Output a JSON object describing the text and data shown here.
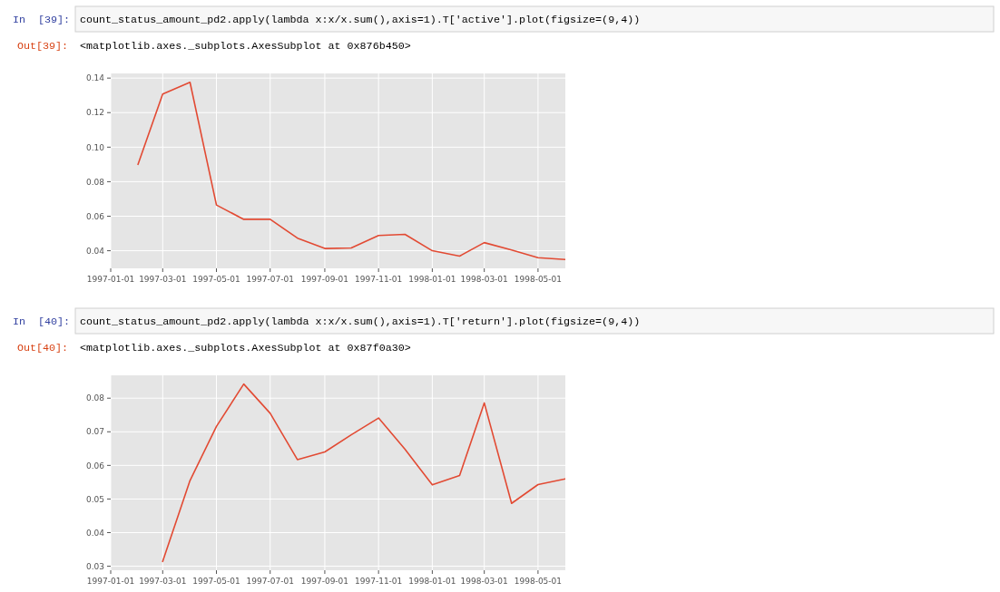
{
  "chart_data": [
    {
      "type": "line",
      "annotations": [
        "In  [39]:",
        "count_status_amount_pd2.apply(lambda x:x/x.sum(),axis=1).T['active'].plot(figsize=(9,4))",
        "Out[39]:",
        "<matplotlib.axes._subplots.AxesSubplot at 0x876b450>"
      ],
      "x": [
        "1997-02-01",
        "1997-03-01",
        "1997-04-01",
        "1997-05-01",
        "1997-06-01",
        "1997-07-01",
        "1997-08-01",
        "1997-09-01",
        "1997-10-01",
        "1997-11-01",
        "1997-12-01",
        "1998-01-01",
        "1998-02-01",
        "1998-03-01",
        "1998-04-01",
        "1998-05-01",
        "1998-06-01"
      ],
      "series": [
        {
          "color": "#e24a33",
          "values": [
            0.09,
            0.1307,
            0.1376,
            0.0665,
            0.0582,
            0.0582,
            0.0473,
            0.0413,
            0.0416,
            0.0488,
            0.0495,
            0.04,
            0.0369,
            0.0447,
            0.0404,
            0.036,
            0.0349
          ]
        }
      ],
      "xlim": [
        "1997-01-01",
        "1998-06-01"
      ],
      "ylim": [
        0.0298,
        0.1427
      ],
      "xticks": [
        "1997-01-01",
        "1997-03-01",
        "1997-05-01",
        "1997-07-01",
        "1997-09-01",
        "1997-11-01",
        "1998-01-01",
        "1998-03-01",
        "1998-05-01"
      ],
      "yticks": [
        {
          "value": 0.04,
          "label": "0.04"
        },
        {
          "value": 0.06,
          "label": "0.06"
        },
        {
          "value": 0.08,
          "label": "0.08"
        },
        {
          "value": 0.1,
          "label": "0.10"
        },
        {
          "value": 0.12,
          "label": "0.12"
        },
        {
          "value": 0.14,
          "label": "0.14"
        }
      ],
      "grid": true
    },
    {
      "type": "line",
      "annotations": [
        "In  [40]:",
        "count_status_amount_pd2.apply(lambda x:x/x.sum(),axis=1).T['return'].plot(figsize=(9,4))",
        "Out[40]:",
        "<matplotlib.axes._subplots.AxesSubplot at 0x87f0a30>"
      ],
      "x": [
        "1997-03-01",
        "1997-04-01",
        "1997-05-01",
        "1997-06-01",
        "1997-07-01",
        "1997-08-01",
        "1997-09-01",
        "1997-10-01",
        "1997-11-01",
        "1997-12-01",
        "1998-01-01",
        "1998-02-01",
        "1998-03-01",
        "1998-04-01",
        "1998-05-01",
        "1998-06-01"
      ],
      "series": [
        {
          "color": "#e24a33",
          "values": [
            0.0314,
            0.0555,
            0.0716,
            0.0842,
            0.0755,
            0.0617,
            0.064,
            0.0691,
            0.0741,
            0.0648,
            0.0542,
            0.057,
            0.0786,
            0.0487,
            0.0543,
            0.056
          ]
        }
      ],
      "xlim": [
        "1997-01-01",
        "1998-06-01"
      ],
      "ylim": [
        0.0288,
        0.0868
      ],
      "xticks": [
        "1997-01-01",
        "1997-03-01",
        "1997-05-01",
        "1997-07-01",
        "1997-09-01",
        "1997-11-01",
        "1998-01-01",
        "1998-03-01",
        "1998-05-01"
      ],
      "yticks": [
        {
          "value": 0.03,
          "label": "0.03"
        },
        {
          "value": 0.04,
          "label": "0.04"
        },
        {
          "value": 0.05,
          "label": "0.05"
        },
        {
          "value": 0.06,
          "label": "0.06"
        },
        {
          "value": 0.07,
          "label": "0.07"
        },
        {
          "value": 0.08,
          "label": "0.08"
        }
      ],
      "grid": true
    }
  ]
}
